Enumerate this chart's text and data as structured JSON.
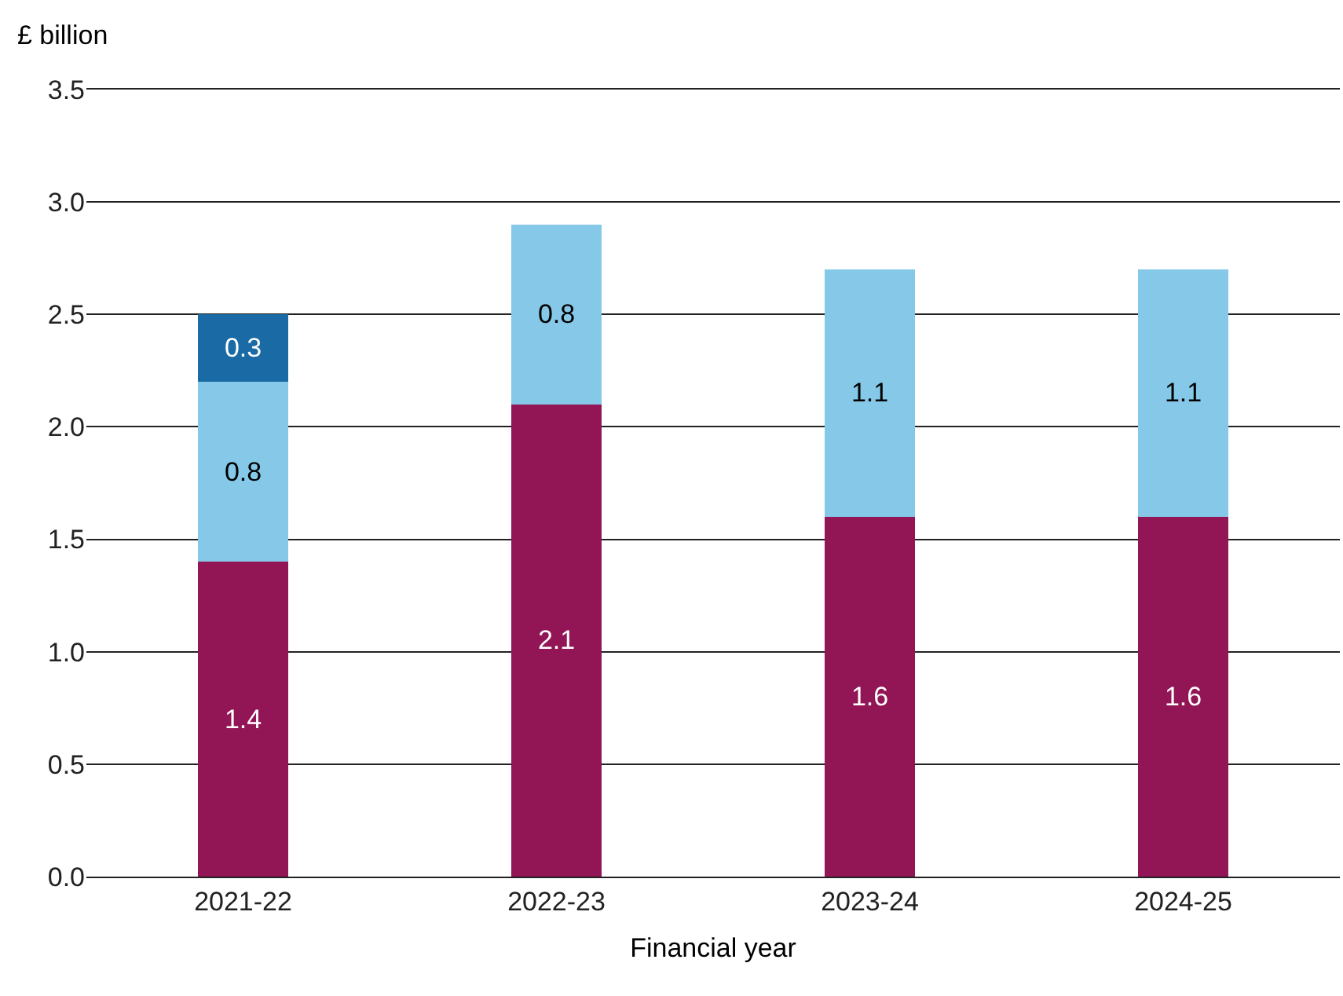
{
  "chart_data": {
    "type": "bar",
    "stacked": true,
    "xlabel": "Financial year",
    "ylabel": "£ billion",
    "categories": [
      "2021-22",
      "2022-23",
      "2023-24",
      "2024-25"
    ],
    "series": [
      {
        "color": "#921556",
        "values": [
          1.4,
          2.1,
          1.6,
          1.6
        ]
      },
      {
        "color": "#85c8e8",
        "values": [
          0.8,
          0.8,
          1.1,
          1.1
        ]
      },
      {
        "color": "#1a6aa5",
        "values": [
          0.3,
          null,
          null,
          null
        ]
      }
    ],
    "ylim": [
      0,
      3.5
    ],
    "yticks": [
      {
        "value": 0,
        "label": "0.0"
      },
      {
        "value": 0.5,
        "label": "0.5"
      },
      {
        "value": 1,
        "label": "1.0"
      },
      {
        "value": 1.5,
        "label": "1.5"
      },
      {
        "value": 2,
        "label": "2.0"
      },
      {
        "value": 2.5,
        "label": "2.5"
      },
      {
        "value": 3,
        "label": "3.0"
      },
      {
        "value": 3.5,
        "label": "3.5"
      }
    ],
    "grid": "y",
    "data_labels": true
  }
}
